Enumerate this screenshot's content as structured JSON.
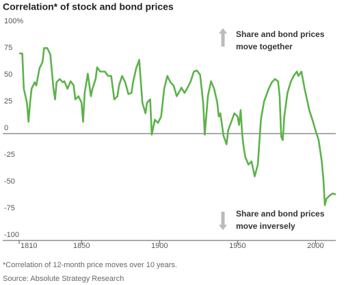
{
  "chart_data": {
    "type": "line",
    "title": "Correlation* of stock and bond prices",
    "footnote": "*Correlation of 12-month price moves over 10 years.",
    "source": "Source: Absolute Strategy Research",
    "annotations": [
      {
        "lines": [
          "Share and bond prices",
          "move together"
        ],
        "direction": "up"
      },
      {
        "lines": [
          "Share and bond prices",
          "move inversely"
        ],
        "direction": "down"
      }
    ],
    "xlim": [
      1810,
      2013
    ],
    "xticks": [
      1810,
      1850,
      1900,
      1950,
      2000
    ],
    "ylim": [
      -100,
      100
    ],
    "yticks": [
      {
        "value": 100,
        "label": "100%"
      },
      75,
      50,
      25,
      0,
      -25,
      -50,
      -75,
      -100
    ],
    "grid": false,
    "x": [
      1810,
      1812,
      1813,
      1815,
      1816,
      1817,
      1818,
      1820,
      1821,
      1823,
      1825,
      1826,
      1828,
      1830,
      1832,
      1833,
      1834,
      1836,
      1838,
      1839,
      1841,
      1843,
      1845,
      1846,
      1848,
      1850,
      1851,
      1852,
      1854,
      1856,
      1857,
      1859,
      1860,
      1862,
      1864,
      1865,
      1867,
      1869,
      1871,
      1873,
      1874,
      1876,
      1878,
      1880,
      1882,
      1883,
      1885,
      1887,
      1889,
      1891,
      1892,
      1894,
      1895,
      1897,
      1899,
      1901,
      1903,
      1905,
      1907,
      1909,
      1911,
      1913,
      1914,
      1916,
      1918,
      1920,
      1922,
      1924,
      1926,
      1928,
      1929,
      1931,
      1933,
      1935,
      1937,
      1938,
      1939,
      1941,
      1943,
      1944,
      1946,
      1948,
      1950,
      1951,
      1952,
      1953,
      1954,
      1955,
      1957,
      1959,
      1961,
      1963,
      1965,
      1967,
      1970,
      1972,
      1974,
      1976,
      1977,
      1978,
      1979,
      1980,
      1982,
      1984,
      1986,
      1988,
      1989,
      1991,
      1993,
      1995,
      1996,
      1998,
      2000,
      2002,
      2004,
      2005,
      2006,
      2007,
      2009,
      2011,
      2013
    ],
    "series": [
      {
        "name": "Correlation",
        "color": "#5cb24a",
        "values": [
          75,
          75,
          42,
          29,
          11,
          29,
          42,
          48,
          45,
          61,
          67,
          80,
          80,
          74,
          42,
          32,
          48,
          51,
          48,
          49,
          42,
          49,
          45,
          32,
          35,
          29,
          11,
          38,
          56,
          35,
          42,
          51,
          62,
          58,
          58,
          58,
          54,
          54,
          32,
          35,
          45,
          54,
          48,
          37,
          38,
          48,
          61,
          69,
          29,
          19,
          29,
          32,
          -1,
          13,
          10,
          16,
          42,
          54,
          48,
          45,
          35,
          40,
          43,
          38,
          43,
          49,
          58,
          59,
          55,
          29,
          -1,
          35,
          49,
          42,
          29,
          16,
          19,
          -2,
          -10,
          3,
          11,
          19,
          16,
          8,
          22,
          -1,
          -13,
          -22,
          -29,
          -26,
          -40,
          -29,
          13,
          30,
          42,
          48,
          51,
          49,
          35,
          -3,
          -6,
          16,
          38,
          48,
          54,
          58,
          54,
          58,
          42,
          29,
          22,
          13,
          3,
          -6,
          -26,
          -42,
          -67,
          -61,
          -58,
          -56,
          -57
        ]
      }
    ]
  }
}
